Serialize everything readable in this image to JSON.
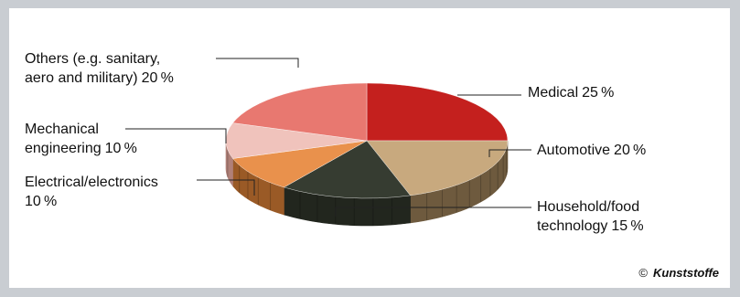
{
  "chart_data": {
    "type": "pie",
    "title": "",
    "unit": "%",
    "slices": [
      {
        "label_lines": [
          "Medical"
        ],
        "value": 25,
        "color": "#c4201e",
        "color_side": "#7a1412"
      },
      {
        "label_lines": [
          "Automotive"
        ],
        "value": 20,
        "color": "#c8a97e",
        "color_side": "#6e5a3e"
      },
      {
        "label_lines": [
          "Household/food",
          "technology"
        ],
        "value": 15,
        "color": "#363c31",
        "color_side": "#22261e"
      },
      {
        "label_lines": [
          "Electrical/electronics",
          ""
        ],
        "value": 10,
        "color": "#e9914c",
        "color_side": "#9a5a26"
      },
      {
        "label_lines": [
          "Mechanical",
          "engineering"
        ],
        "value": 10,
        "color": "#f0c3bc",
        "color_side": "#b08078"
      },
      {
        "label_lines": [
          "Others (e.g. sanitary,",
          "aero and military)"
        ],
        "value": 20,
        "color": "#e87870",
        "color_side": "#9c4a44"
      }
    ],
    "credit": {
      "symbol": "©",
      "source": "Kunststoffe"
    },
    "leader_color": "#222222"
  }
}
